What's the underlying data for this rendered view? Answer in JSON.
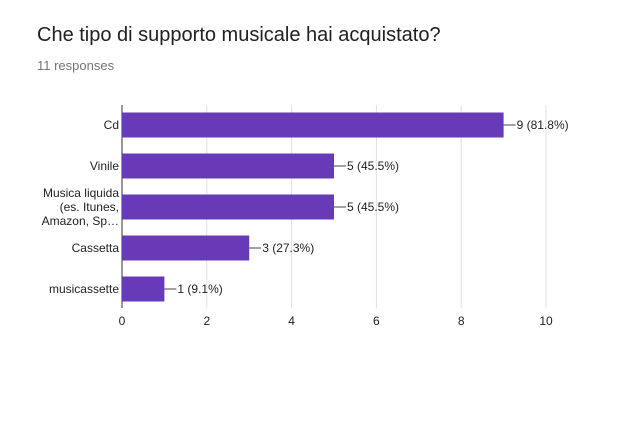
{
  "title": "Che tipo di supporto musicale hai acquistato?",
  "subtitle": "11 responses",
  "colors": {
    "bar": "#673ab7",
    "grid": "#e0e0e0",
    "axis": "#333333",
    "text": "#222222",
    "subtitle": "#757575"
  },
  "chart_data": {
    "type": "bar",
    "orientation": "horizontal",
    "title": "Che tipo di supporto musicale hai acquistato?",
    "xlabel": "",
    "ylabel": "",
    "xlim": [
      0,
      10
    ],
    "xticks": [
      0,
      2,
      4,
      6,
      8,
      10
    ],
    "grid": true,
    "legend": "none",
    "categories": [
      [
        "Cd"
      ],
      [
        "Vinile"
      ],
      [
        "Musica liquida",
        "(es. Itunes,",
        "Amazon, Sp…"
      ],
      [
        "Cassetta"
      ],
      [
        "musicassette"
      ]
    ],
    "values": [
      9,
      5,
      5,
      3,
      1
    ],
    "labels": [
      "9 (81.8%)",
      "5 (45.5%)",
      "5 (45.5%)",
      "3 (27.3%)",
      "1 (9.1%)"
    ]
  }
}
